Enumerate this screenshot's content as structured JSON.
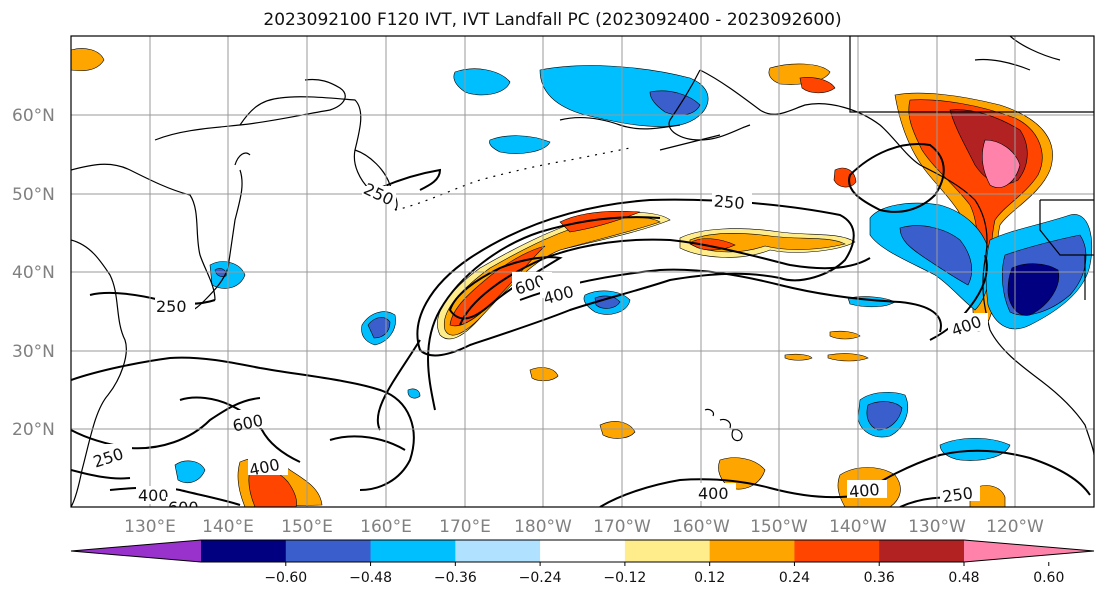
{
  "title": "2023092100 F120 IVT, IVT Landfall PC (2023092400 - 2023092600)",
  "lat_labels": [
    "60°N",
    "50°N",
    "40°N",
    "30°N",
    "20°N"
  ],
  "lon_labels": [
    "130°E",
    "140°E",
    "150°E",
    "160°E",
    "170°E",
    "180°W",
    "170°W",
    "160°W",
    "150°W",
    "140°W",
    "130°W",
    "120°W"
  ],
  "colorbar": {
    "ticks": [
      "−0.60",
      "−0.48",
      "−0.36",
      "−0.24",
      "−0.12",
      "0.12",
      "0.24",
      "0.36",
      "0.48",
      "0.60"
    ],
    "colors": [
      "#9932cc",
      "#000080",
      "#3a5fcd",
      "#00bfff",
      "#b0e2ff",
      "#ffffff",
      "#ffec8b",
      "#ffa500",
      "#ff4500",
      "#b22222",
      "#ff82ab"
    ]
  },
  "contour_labels": [
    "250",
    "250",
    "250",
    "250",
    "600",
    "400",
    "400",
    "250",
    "600",
    "400",
    "400",
    "600",
    "400",
    "400",
    "250"
  ],
  "colors": {
    "contour": "#000000",
    "coast": "#000000",
    "grid": "#999999"
  }
}
